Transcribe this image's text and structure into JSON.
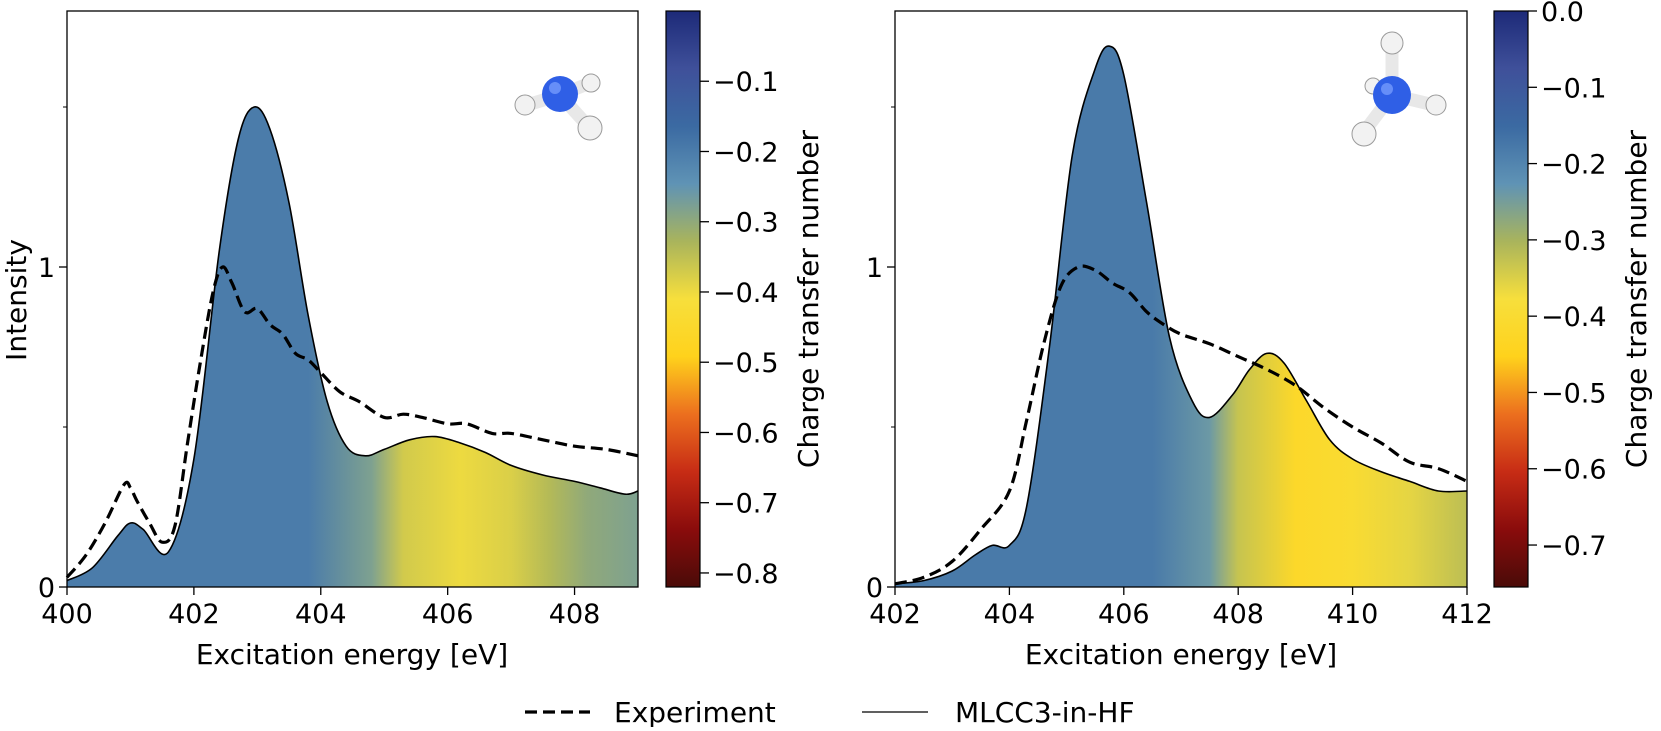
{
  "chart_data": [
    {
      "type": "line",
      "title": "",
      "xlabel": "Excitation energy [eV]",
      "ylabel": "Intensity",
      "xlim": [
        400,
        409
      ],
      "ylim": [
        0,
        1.8
      ],
      "x_ticks": [
        "400",
        "402",
        "404",
        "406",
        "408"
      ],
      "y_ticks": [
        "0",
        "1"
      ],
      "colorbar": {
        "label": "Charge transfer number",
        "range": [
          -0.82,
          0.0
        ],
        "ticks": [
          "−0.1",
          "−0.2",
          "−0.3",
          "−0.4",
          "−0.5",
          "−0.6",
          "−0.7",
          "−0.8"
        ]
      },
      "series": [
        {
          "name": "Experiment",
          "style": "dashed",
          "x": [
            400,
            400.3,
            400.6,
            400.9,
            401.0,
            401.1,
            401.3,
            401.5,
            401.7,
            401.9,
            402.1,
            402.3,
            402.45,
            402.6,
            402.8,
            403.0,
            403.2,
            403.4,
            403.6,
            403.8,
            404.0,
            404.3,
            404.6,
            405.0,
            405.3,
            405.6,
            406.0,
            406.3,
            406.7,
            407.0,
            407.5,
            408.0,
            408.5,
            409.0
          ],
          "values": [
            0.03,
            0.1,
            0.2,
            0.32,
            0.31,
            0.27,
            0.2,
            0.14,
            0.19,
            0.45,
            0.7,
            0.92,
            1.0,
            0.95,
            0.86,
            0.87,
            0.82,
            0.79,
            0.73,
            0.71,
            0.67,
            0.61,
            0.58,
            0.53,
            0.54,
            0.53,
            0.51,
            0.51,
            0.48,
            0.48,
            0.46,
            0.44,
            0.43,
            0.41
          ]
        },
        {
          "name": "MLCC3-in-HF",
          "style": "solid",
          "x": [
            400,
            400.4,
            400.8,
            401.0,
            401.2,
            401.6,
            402.0,
            402.4,
            402.7,
            402.95,
            403.2,
            403.5,
            403.8,
            404.1,
            404.4,
            404.7,
            405.0,
            405.4,
            405.8,
            406.2,
            406.6,
            407.0,
            407.5,
            408.0,
            408.4,
            408.8,
            409.0
          ],
          "values": [
            0.02,
            0.06,
            0.16,
            0.2,
            0.18,
            0.11,
            0.4,
            1.05,
            1.4,
            1.5,
            1.43,
            1.2,
            0.85,
            0.58,
            0.44,
            0.41,
            0.43,
            0.46,
            0.47,
            0.45,
            0.42,
            0.38,
            0.35,
            0.33,
            0.31,
            0.29,
            0.3
          ]
        }
      ],
      "fill_charge_transfer": {
        "x": [
          400,
          403.8,
          404.8,
          405.3,
          406.2,
          407.0,
          407.6,
          408.2,
          409.0
        ],
        "values": [
          -0.2,
          -0.2,
          -0.28,
          -0.37,
          -0.4,
          -0.38,
          -0.34,
          -0.3,
          -0.28
        ]
      }
    },
    {
      "type": "line",
      "title": "",
      "xlabel": "Excitation energy [eV]",
      "ylabel": "",
      "xlim": [
        402,
        412
      ],
      "ylim": [
        0,
        1.8
      ],
      "x_ticks": [
        "402",
        "404",
        "406",
        "408",
        "410",
        "412"
      ],
      "y_ticks": [
        "0",
        "1"
      ],
      "colorbar": {
        "label": "Charge transfer number",
        "range": [
          -0.755,
          0.0
        ],
        "ticks": [
          "0.0",
          "−0.1",
          "−0.2",
          "−0.3",
          "−0.4",
          "−0.5",
          "−0.6",
          "−0.7"
        ]
      },
      "series": [
        {
          "name": "Experiment",
          "style": "dashed",
          "x": [
            402,
            402.5,
            403.0,
            403.5,
            404.0,
            404.3,
            404.6,
            404.9,
            405.2,
            405.5,
            405.8,
            406.1,
            406.4,
            406.7,
            407.0,
            407.5,
            408.0,
            408.5,
            409.0,
            409.5,
            410.0,
            410.5,
            411.0,
            411.5,
            412.0
          ],
          "values": [
            0.01,
            0.03,
            0.08,
            0.18,
            0.3,
            0.52,
            0.76,
            0.94,
            1.0,
            0.99,
            0.95,
            0.92,
            0.86,
            0.82,
            0.79,
            0.76,
            0.72,
            0.68,
            0.63,
            0.56,
            0.5,
            0.45,
            0.39,
            0.37,
            0.33
          ]
        },
        {
          "name": "MLCC3-in-HF",
          "style": "solid",
          "x": [
            402,
            402.5,
            403.0,
            403.4,
            403.7,
            404.0,
            404.3,
            404.7,
            405.1,
            405.5,
            405.75,
            406.0,
            406.4,
            406.8,
            407.2,
            407.5,
            407.9,
            408.2,
            408.5,
            408.8,
            409.2,
            409.6,
            410.0,
            410.5,
            411.0,
            411.5,
            412.0
          ],
          "values": [
            0.01,
            0.02,
            0.05,
            0.1,
            0.13,
            0.13,
            0.25,
            0.75,
            1.35,
            1.62,
            1.69,
            1.6,
            1.2,
            0.78,
            0.58,
            0.53,
            0.6,
            0.68,
            0.73,
            0.7,
            0.58,
            0.46,
            0.4,
            0.36,
            0.33,
            0.3,
            0.3
          ]
        }
      ],
      "fill_charge_transfer": {
        "x": [
          402,
          406.5,
          407.5,
          408.0,
          409.0,
          410.0,
          411.0,
          412.0
        ],
        "values": [
          -0.18,
          -0.18,
          -0.24,
          -0.33,
          -0.42,
          -0.4,
          -0.36,
          -0.32
        ]
      }
    }
  ],
  "legend": {
    "items": [
      {
        "label": "Experiment",
        "style": "dashed"
      },
      {
        "label": "MLCC3-in-HF",
        "style": "solid"
      }
    ]
  },
  "colormap": [
    "#4a0b08",
    "#8a0c0c",
    "#c72c15",
    "#ec6f1e",
    "#ffd21c",
    "#f7df3c",
    "#a9b45c",
    "#5f93b5",
    "#3b6aa2",
    "#3f509a",
    "#1d2a78"
  ],
  "molecule_colors": {
    "nitrogen": "#2f5fe6",
    "hydrogen": "#f4f4f4"
  }
}
